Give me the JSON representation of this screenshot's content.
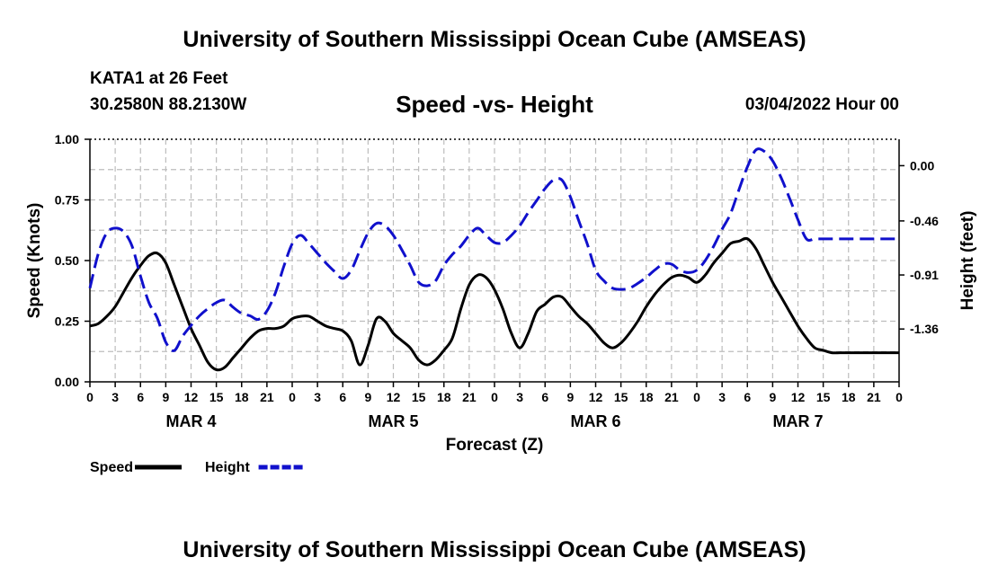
{
  "header": {
    "title": "University of Southern Mississippi Ocean Cube (AMSEAS)",
    "station": "KATA1 at 26 Feet",
    "coords": "30.2580N  88.2130W",
    "subtitle": "Speed -vs- Height",
    "run_time": "03/04/2022 Hour 00"
  },
  "footer": {
    "title": "University of Southern Mississippi Ocean Cube (AMSEAS)"
  },
  "chart_data": {
    "type": "line",
    "title": "Speed -vs- Height",
    "xlabel": "Forecast (Z)",
    "ylabel": "Speed (Knots)",
    "y2label": "Height (feet)",
    "xlim": [
      0,
      96
    ],
    "ylim": [
      0,
      1.0
    ],
    "y2lim": [
      -1.8,
      0.22
    ],
    "x_ticks": [
      0,
      3,
      6,
      9,
      12,
      15,
      18,
      21,
      24,
      27,
      30,
      33,
      36,
      39,
      42,
      45,
      48,
      51,
      54,
      57,
      60,
      63,
      66,
      69,
      72,
      75,
      78,
      81,
      84,
      87,
      90,
      93,
      96
    ],
    "x_tick_labels": [
      "0",
      "3",
      "6",
      "9",
      "12",
      "15",
      "18",
      "21",
      "0",
      "3",
      "6",
      "9",
      "12",
      "15",
      "18",
      "21",
      "0",
      "3",
      "6",
      "9",
      "12",
      "15",
      "18",
      "21",
      "0",
      "3",
      "6",
      "9",
      "12",
      "15",
      "18",
      "21",
      "0"
    ],
    "day_labels": [
      {
        "x": 12,
        "label": "MAR 4"
      },
      {
        "x": 36,
        "label": "MAR 5"
      },
      {
        "x": 60,
        "label": "MAR 6"
      },
      {
        "x": 84,
        "label": "MAR 7"
      }
    ],
    "y_ticks": [
      0.0,
      0.25,
      0.5,
      0.75,
      1.0
    ],
    "y_tick_labels": [
      "0.00",
      "0.25",
      "0.50",
      "0.75",
      "1.00"
    ],
    "y2_ticks": [
      0.0,
      -0.46,
      -0.91,
      -1.36
    ],
    "y2_tick_labels": [
      "0.00",
      "-0.46",
      "-0.91",
      "-1.36"
    ],
    "grid": true,
    "legend_position": "bottom-left",
    "series": [
      {
        "name": "Speed",
        "axis": "left",
        "color": "#000000",
        "style": "solid",
        "x": [
          0,
          1,
          2,
          3,
          4,
          5,
          6,
          7,
          8,
          9,
          10,
          11,
          12,
          13,
          14,
          15,
          16,
          17,
          18,
          19,
          20,
          21,
          22,
          23,
          24,
          25,
          26,
          27,
          28,
          29,
          30,
          31,
          32,
          33,
          34,
          35,
          36,
          37,
          38,
          39,
          40,
          41,
          42,
          43,
          44,
          45,
          46,
          47,
          48,
          49,
          50,
          51,
          52,
          53,
          54,
          55,
          56,
          57,
          58,
          59,
          60,
          61,
          62,
          63,
          64,
          65,
          66,
          67,
          68,
          69,
          70,
          71,
          72,
          73,
          74,
          75,
          76,
          77,
          78,
          79,
          80,
          81,
          82,
          83,
          84,
          85,
          86,
          87,
          88,
          89,
          90,
          91,
          92,
          93,
          94,
          95,
          96
        ],
        "values": [
          0.23,
          0.24,
          0.27,
          0.31,
          0.37,
          0.43,
          0.48,
          0.52,
          0.53,
          0.49,
          0.4,
          0.31,
          0.22,
          0.15,
          0.08,
          0.05,
          0.06,
          0.1,
          0.14,
          0.18,
          0.21,
          0.22,
          0.22,
          0.23,
          0.26,
          0.27,
          0.27,
          0.25,
          0.23,
          0.22,
          0.21,
          0.17,
          0.07,
          0.15,
          0.26,
          0.25,
          0.2,
          0.17,
          0.14,
          0.09,
          0.07,
          0.09,
          0.13,
          0.18,
          0.3,
          0.4,
          0.44,
          0.43,
          0.38,
          0.3,
          0.2,
          0.14,
          0.2,
          0.29,
          0.32,
          0.35,
          0.35,
          0.31,
          0.27,
          0.24,
          0.2,
          0.16,
          0.14,
          0.16,
          0.2,
          0.25,
          0.31,
          0.36,
          0.4,
          0.43,
          0.44,
          0.43,
          0.41,
          0.44,
          0.49,
          0.53,
          0.57,
          0.58,
          0.59,
          0.55,
          0.48,
          0.41,
          0.35,
          0.29,
          0.23,
          0.18,
          0.14,
          0.13,
          0.12,
          0.12,
          0.12,
          0.12,
          0.12,
          0.12,
          0.12,
          0.12,
          0.12
        ]
      },
      {
        "name": "Height",
        "axis": "right",
        "color": "#1010cc",
        "style": "dashed",
        "x": [
          0,
          1,
          2,
          3,
          4,
          5,
          6,
          7,
          8,
          9,
          10,
          11,
          12,
          13,
          14,
          15,
          16,
          17,
          18,
          19,
          20,
          21,
          22,
          23,
          24,
          25,
          26,
          27,
          28,
          29,
          30,
          31,
          32,
          33,
          34,
          35,
          36,
          37,
          38,
          39,
          40,
          41,
          42,
          43,
          44,
          45,
          46,
          47,
          48,
          49,
          50,
          51,
          52,
          53,
          54,
          55,
          56,
          57,
          58,
          59,
          60,
          61,
          62,
          63,
          64,
          65,
          66,
          67,
          68,
          69,
          70,
          71,
          72,
          73,
          74,
          75,
          76,
          77,
          78,
          79,
          80,
          81,
          82,
          83,
          84,
          85,
          86,
          87,
          88,
          89,
          90,
          91,
          92,
          93,
          94,
          95,
          96
        ],
        "values": [
          -1.02,
          -0.73,
          -0.56,
          -0.52,
          -0.55,
          -0.67,
          -0.92,
          -1.14,
          -1.27,
          -1.47,
          -1.54,
          -1.42,
          -1.33,
          -1.25,
          -1.19,
          -1.14,
          -1.12,
          -1.18,
          -1.23,
          -1.25,
          -1.28,
          -1.21,
          -1.06,
          -0.84,
          -0.65,
          -0.58,
          -0.65,
          -0.73,
          -0.81,
          -0.88,
          -0.94,
          -0.87,
          -0.71,
          -0.56,
          -0.48,
          -0.5,
          -0.58,
          -0.7,
          -0.83,
          -0.97,
          -1.0,
          -0.96,
          -0.83,
          -0.74,
          -0.67,
          -0.58,
          -0.52,
          -0.58,
          -0.64,
          -0.64,
          -0.58,
          -0.5,
          -0.39,
          -0.29,
          -0.19,
          -0.12,
          -0.12,
          -0.26,
          -0.46,
          -0.65,
          -0.87,
          -0.96,
          -1.02,
          -1.03,
          -1.02,
          -0.98,
          -0.93,
          -0.87,
          -0.82,
          -0.82,
          -0.87,
          -0.89,
          -0.87,
          -0.79,
          -0.67,
          -0.53,
          -0.4,
          -0.2,
          -0.01,
          0.13,
          0.12,
          0.04,
          -0.1,
          -0.27,
          -0.45,
          -0.61,
          -0.61,
          -0.61,
          -0.61,
          -0.61,
          -0.61,
          -0.61,
          -0.61,
          -0.61,
          -0.61,
          -0.61,
          -0.61
        ]
      }
    ]
  }
}
